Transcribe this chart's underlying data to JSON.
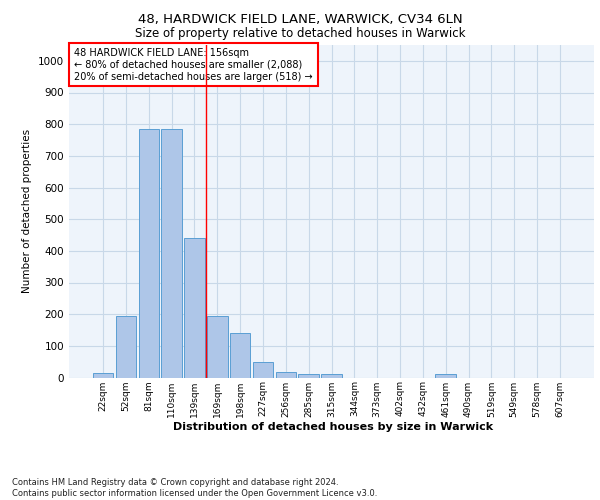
{
  "title_line1": "48, HARDWICK FIELD LANE, WARWICK, CV34 6LN",
  "title_line2": "Size of property relative to detached houses in Warwick",
  "xlabel": "Distribution of detached houses by size in Warwick",
  "ylabel": "Number of detached properties",
  "footnote": "Contains HM Land Registry data © Crown copyright and database right 2024.\nContains public sector information licensed under the Open Government Licence v3.0.",
  "categories": [
    "22sqm",
    "52sqm",
    "81sqm",
    "110sqm",
    "139sqm",
    "169sqm",
    "198sqm",
    "227sqm",
    "256sqm",
    "285sqm",
    "315sqm",
    "344sqm",
    "373sqm",
    "402sqm",
    "432sqm",
    "461sqm",
    "490sqm",
    "519sqm",
    "549sqm",
    "578sqm",
    "607sqm"
  ],
  "values": [
    15,
    195,
    785,
    785,
    440,
    195,
    140,
    50,
    18,
    12,
    10,
    0,
    0,
    0,
    0,
    10,
    0,
    0,
    0,
    0,
    0
  ],
  "bar_color": "#aec6e8",
  "bar_edge_color": "#5a9fd4",
  "grid_color": "#c8d8e8",
  "background_color": "#eef4fb",
  "vline_x": 4.5,
  "vline_color": "red",
  "annotation_text": "48 HARDWICK FIELD LANE: 156sqm\n← 80% of detached houses are smaller (2,088)\n20% of semi-detached houses are larger (518) →",
  "annotation_box_color": "white",
  "annotation_box_edge_color": "red",
  "ylim": [
    0,
    1050
  ],
  "yticks": [
    0,
    100,
    200,
    300,
    400,
    500,
    600,
    700,
    800,
    900,
    1000
  ]
}
